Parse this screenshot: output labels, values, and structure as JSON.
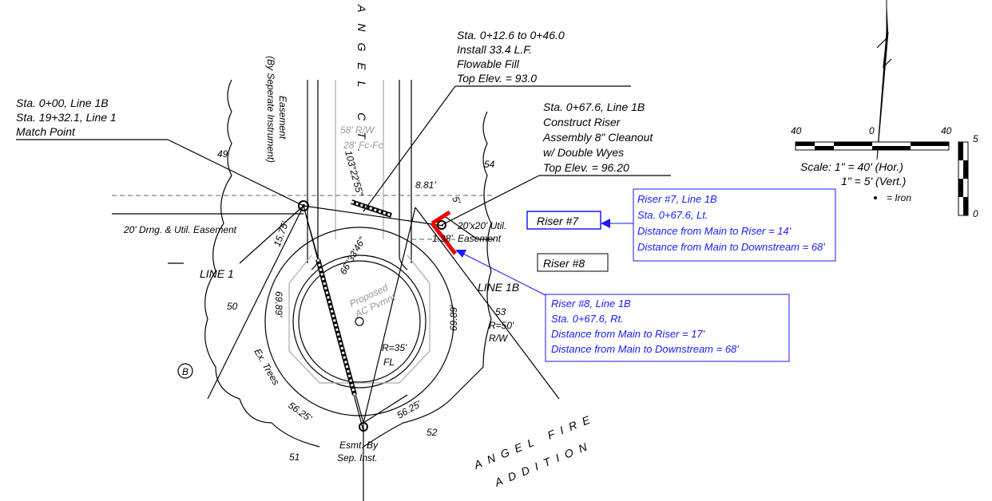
{
  "street_name": "ANGEL CT.",
  "callouts": {
    "match_point": [
      "Sta. 0+00, Line 1B",
      "Sta. 19+32.1, Line 1",
      "Match Point"
    ],
    "flowable_fill": [
      "Sta. 0+12.6 to 0+46.0",
      "Install 33.4 L.F.",
      "Flowable Fill",
      "Top Elev. = 93.0"
    ],
    "construct_riser": [
      "Sta. 0+67.6, Line 1B",
      "Construct Riser",
      "Assembly 8\" Cleanout",
      "w/ Double Wyes",
      "Top Elev. = 96.20"
    ]
  },
  "lots": {
    "lot_49": "49",
    "lot_54": "54",
    "lot_50": "50",
    "lot_53": "53",
    "lot_51": "51",
    "lot_52": "52"
  },
  "labels": {
    "easement_left": "(By Seperate Instrument)",
    "easement_word": "Easement",
    "row_width": "58' R/W",
    "fc_width": "28' Fc-Fc",
    "angle_top": "103°22'55\"",
    "dim_881": "8.81'",
    "dim_5": "5'",
    "util_easement": "20'x20' Util.",
    "util_easement_2": "Easement",
    "dim_138": "1.38'",
    "drng_easement": "20' Drng. & Util. Easement",
    "dim_1575": "15.75'",
    "line_1": "LINE 1",
    "line_1b": "LINE 1B",
    "angle_mid": "66°33'46\"",
    "proposed": "Proposed",
    "ac_pvmnt": "AC Pvmnt",
    "dim_6989_left": "69.89'",
    "dim_6989_right": "69.89'",
    "r35": "R=35'",
    "fl": "FL",
    "r50": "R=50'",
    "rw": "R/W",
    "ex_trees": "Ex. Trees",
    "circle_b": "B",
    "dim_5625_left": "56.25'",
    "dim_5625_right": "56.25'",
    "esmt_by": "Esmt. By",
    "sep_inst": "Sep. Inst.",
    "addition_1": "ANGEL FIRE",
    "addition_2": "ADDITION"
  },
  "scale": {
    "left": "40",
    "center": "0",
    "right": "40",
    "vert_top": "5",
    "vert_bottom": "0",
    "line_1": "Scale: 1\" = 40' (Hor.)",
    "line_2": "1\" = 5' (Vert.)",
    "iron": "= Iron"
  },
  "risers": [
    {
      "tag": "Riser #7",
      "details": [
        "Riser #7, Line 1B",
        "Sta. 0+67.6, Lt.",
        "Distance from Main to Riser = 14'",
        "Distance from Main to Downstream = 68'"
      ]
    },
    {
      "tag": "Riser #8",
      "details": [
        "Riser #8, Line 1B",
        "Sta. 0+67.6, Rt.",
        "Distance from Main to Riser = 17'",
        "Distance from Main to Downstream = 68'"
      ]
    }
  ]
}
